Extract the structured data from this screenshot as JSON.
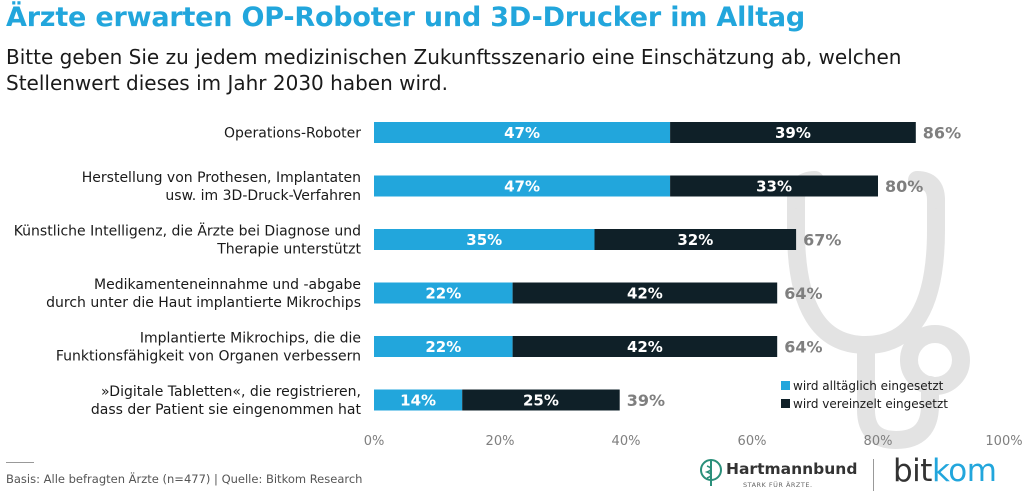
{
  "title": "Ärzte erwarten OP-Roboter und 3D-Drucker im Alltag",
  "subtitle": "Bitte geben Sie zu jedem medizinischen Zukunftsszenario eine Einschätzung ab, welchen Stellenwert dieses im Jahr 2030 haben wird.",
  "colors": {
    "accent": "#22a6dc",
    "dark": "#0f2028",
    "total": "#7f7f7f",
    "watermark": "#e3e3e3"
  },
  "chart_data": {
    "type": "bar",
    "orientation": "horizontal",
    "stacked": true,
    "categories": [
      [
        "Operations-Roboter"
      ],
      [
        "Herstellung von Prothesen, Implantaten",
        "usw. im 3D-Druck-Verfahren"
      ],
      [
        "Künstliche Intelligenz, die Ärzte bei Diagnose und",
        "Therapie unterstützt"
      ],
      [
        "Medikamenteneinnahme und -abgabe",
        "durch unter die Haut implantierte Mikrochips"
      ],
      [
        "Implantierte Mikrochips, die die",
        "Funktionsfähigkeit von Organen verbessern"
      ],
      [
        "»Digitale Tabletten«, die registrieren,",
        "dass der Patient sie eingenommen hat"
      ]
    ],
    "series": [
      {
        "name": "wird alltäglich eingesetzt",
        "color": "#22a6dc",
        "values": [
          47,
          47,
          35,
          22,
          22,
          14
        ]
      },
      {
        "name": "wird vereinzelt eingesetzt",
        "color": "#0f2028",
        "values": [
          39,
          33,
          32,
          42,
          42,
          25
        ]
      }
    ],
    "totals": [
      86,
      80,
      67,
      64,
      64,
      39
    ],
    "xlim": [
      0,
      100
    ],
    "xticks": [
      "0%",
      "20%",
      "40%",
      "60%",
      "80%",
      "100%"
    ],
    "legend_position": "bottom-right",
    "grid": false
  },
  "footer": {
    "source": "Basis: Alle befragten Ärzte (n=477) | Quelle: Bitkom Research"
  },
  "logos": {
    "hartmannbund_name": "Hartmannbund",
    "hartmannbund_tagline": "STARK FÜR ÄRZTE.",
    "bitkom_bit": "bit",
    "bitkom_kom": "kom"
  }
}
